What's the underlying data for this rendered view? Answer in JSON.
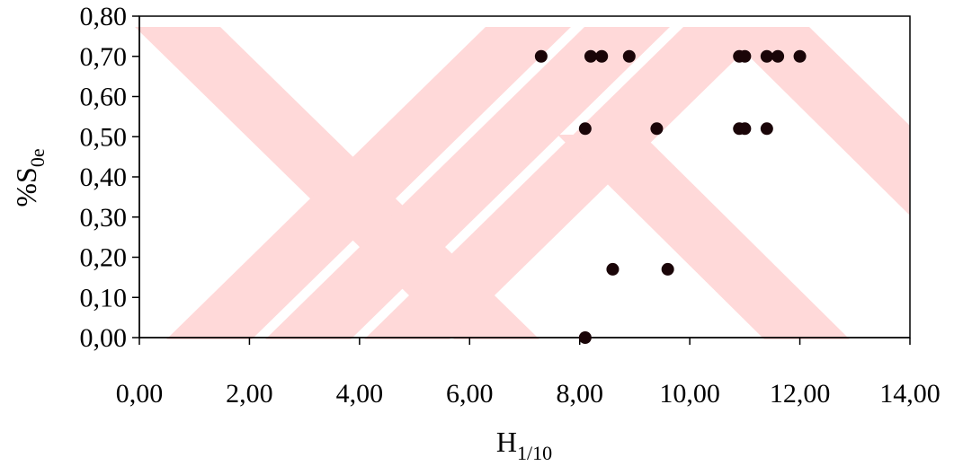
{
  "chart_data": {
    "type": "scatter",
    "title": "",
    "xlabel": "H",
    "xlabel_sub": "1/10",
    "ylabel": "%S",
    "ylabel_sub": "0e",
    "xlim": [
      0,
      14
    ],
    "ylim": [
      0,
      0.8
    ],
    "x_ticks": [
      "0,00",
      "2,00",
      "4,00",
      "6,00",
      "8,00",
      "10,00",
      "12,00",
      "14,00"
    ],
    "y_ticks": [
      "0,00",
      "0,10",
      "0,20",
      "0,30",
      "0,40",
      "0,50",
      "0,60",
      "0,70",
      "0,80"
    ],
    "grid": false,
    "legend": "none",
    "point_color": "#1a0508",
    "watermark_color": "#ffd9d9",
    "points": [
      {
        "x": 7.3,
        "y": 0.7
      },
      {
        "x": 8.2,
        "y": 0.7
      },
      {
        "x": 8.4,
        "y": 0.7
      },
      {
        "x": 8.9,
        "y": 0.7
      },
      {
        "x": 10.9,
        "y": 0.7
      },
      {
        "x": 11.0,
        "y": 0.7
      },
      {
        "x": 11.4,
        "y": 0.7
      },
      {
        "x": 11.6,
        "y": 0.7
      },
      {
        "x": 12.0,
        "y": 0.7
      },
      {
        "x": 8.1,
        "y": 0.52
      },
      {
        "x": 9.4,
        "y": 0.52
      },
      {
        "x": 10.9,
        "y": 0.52
      },
      {
        "x": 11.0,
        "y": 0.52
      },
      {
        "x": 11.4,
        "y": 0.52
      },
      {
        "x": 8.6,
        "y": 0.17
      },
      {
        "x": 9.6,
        "y": 0.17
      },
      {
        "x": 8.1,
        "y": 0.0
      }
    ]
  }
}
